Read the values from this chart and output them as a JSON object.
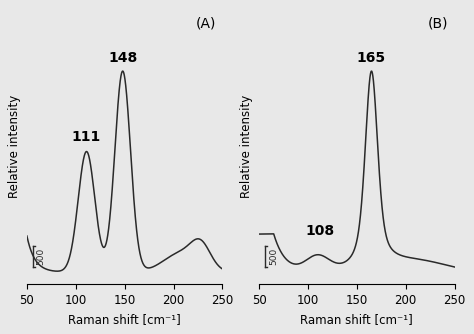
{
  "panel_A": {
    "label": "(A)",
    "xlabel": "Raman shift [cm⁻¹]",
    "ylabel": "Relative intensity",
    "xlim": [
      50,
      250
    ],
    "xticks": [
      50,
      100,
      150,
      200,
      250
    ],
    "peak1_label": "111",
    "peak2_label": "148"
  },
  "panel_B": {
    "label": "(B)",
    "xlabel": "Raman shift [cm⁻¹]",
    "ylabel": "Relative intensity",
    "xlim": [
      50,
      250
    ],
    "xticks": [
      50,
      100,
      150,
      200,
      250
    ],
    "peak1_label": "108",
    "peak2_label": "165"
  },
  "line_color": "#2a2a2a",
  "bg_color": "#e8e8e8",
  "label_fontsize": 8.5,
  "peak_label_fontsize": 10,
  "panel_label_fontsize": 10
}
